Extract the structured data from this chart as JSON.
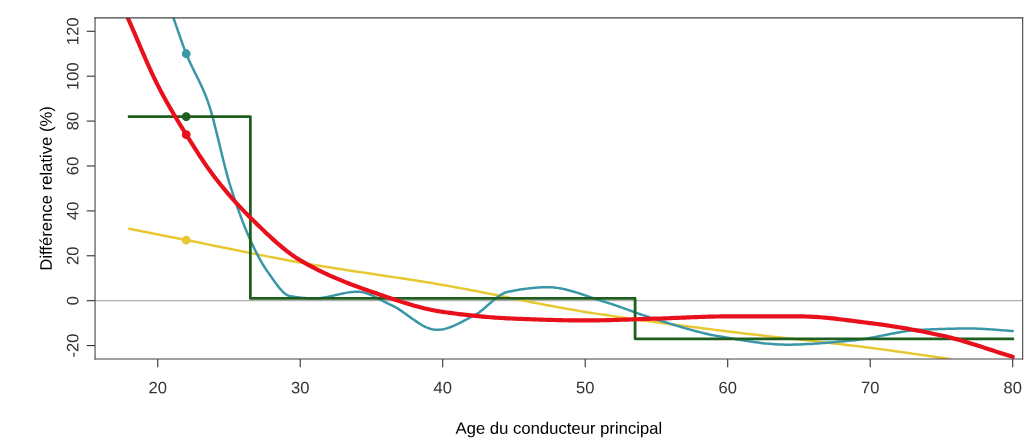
{
  "chart_data": {
    "type": "line",
    "xlabel": "Age du conducteur principal",
    "ylabel": "Différence relative (%)",
    "xlim": [
      15.6,
      80.7
    ],
    "ylim": [
      -26,
      126
    ],
    "xticks": [
      20,
      30,
      40,
      50,
      60,
      70,
      80
    ],
    "yticks": [
      -20,
      0,
      20,
      40,
      60,
      80,
      100,
      120
    ],
    "grid": false,
    "legend": false,
    "ref_lines": [
      {
        "axis": "y",
        "value": 0,
        "color": "#b0b0b0"
      }
    ],
    "series": [
      {
        "type": "line",
        "color": "#e8c832",
        "x": [
          18,
          22,
          30,
          40,
          50,
          60,
          70,
          75.6
        ],
        "values": [
          32,
          27,
          17,
          7,
          -5,
          -13.7,
          -21,
          -26
        ]
      },
      {
        "type": "line",
        "color": "#3a97a8",
        "x": [
          21.1,
          22,
          23.5,
          25.1,
          26.5,
          27.7,
          29.3,
          31,
          34,
          36.4,
          39.6,
          42.2,
          44.6,
          47.4,
          51.3,
          54.8,
          59.5,
          64.2,
          68.8,
          73.5,
          77,
          80
        ],
        "values": [
          126,
          110,
          89,
          51,
          27,
          13,
          2,
          1,
          4,
          -2,
          -13,
          -6.6,
          4,
          6,
          -0.4,
          -8,
          -16,
          -19.6,
          -17.7,
          -13,
          -12.4,
          -13.5
        ]
      },
      {
        "type": "step",
        "color": "#1e5e1e",
        "x": [
          18,
          26.5,
          53.5,
          80
        ],
        "values": [
          82,
          1,
          -17,
          -17
        ]
      },
      {
        "type": "line",
        "color": "#e8101a",
        "x": [
          17.9,
          20,
          22,
          24,
          26.5,
          30,
          35,
          40,
          45,
          50,
          55,
          60,
          65,
          70,
          75,
          80
        ],
        "values": [
          126,
          96,
          74,
          55,
          37,
          18,
          4,
          -5,
          -8,
          -8.8,
          -8,
          -7,
          -7,
          -10,
          -15.5,
          -25
        ]
      },
      {
        "type": "scatter",
        "x": [
          22,
          22,
          22,
          22
        ],
        "values": [
          110,
          82,
          74,
          27
        ],
        "colors": [
          "#3a97a8",
          "#1e5e1e",
          "#e8101a",
          "#e8c832"
        ],
        "marker": "circle"
      }
    ]
  }
}
